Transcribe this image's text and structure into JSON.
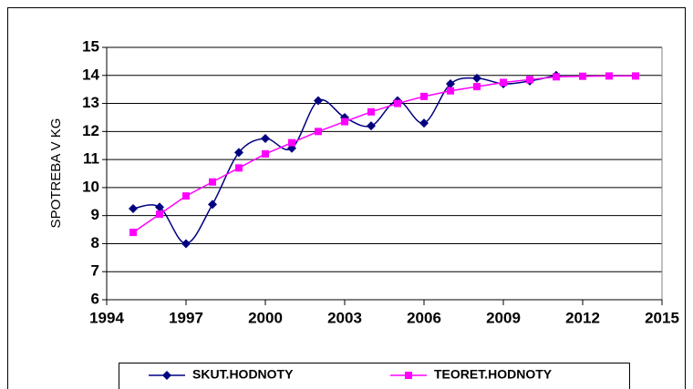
{
  "chart_data": {
    "type": "line",
    "ylabel": "SPOTREBA V KG",
    "x": [
      1995,
      1996,
      1997,
      1998,
      1999,
      2000,
      2001,
      2002,
      2003,
      2004,
      2005,
      2006,
      2007,
      2008,
      2009,
      2010,
      2011,
      2012,
      2013,
      2014
    ],
    "series": [
      {
        "name": "SKUT.HODNOTY",
        "color": "#000080",
        "marker": "diamond",
        "smooth": true,
        "values": [
          9.25,
          9.3,
          8.0,
          9.4,
          11.25,
          11.75,
          11.4,
          13.1,
          12.5,
          12.2,
          13.1,
          12.3,
          13.7,
          13.9,
          13.7,
          13.8,
          14.0,
          null,
          null,
          null
        ]
      },
      {
        "name": "TEORET.HODNOTY",
        "color": "#ff00ff",
        "marker": "square",
        "smooth": false,
        "values": [
          8.4,
          9.05,
          9.7,
          10.2,
          10.7,
          11.2,
          11.6,
          12.0,
          12.35,
          12.7,
          13.0,
          13.25,
          13.45,
          13.6,
          13.75,
          13.85,
          13.95,
          13.97,
          13.98,
          13.98
        ]
      }
    ],
    "xlim": [
      1994,
      2015
    ],
    "xticks": [
      1994,
      1997,
      2000,
      2003,
      2006,
      2009,
      2012,
      2015
    ],
    "ylim": [
      6,
      15
    ],
    "yticks": [
      6,
      7,
      8,
      9,
      10,
      11,
      12,
      13,
      14,
      15
    ],
    "grid": true,
    "legend": "bottom"
  }
}
